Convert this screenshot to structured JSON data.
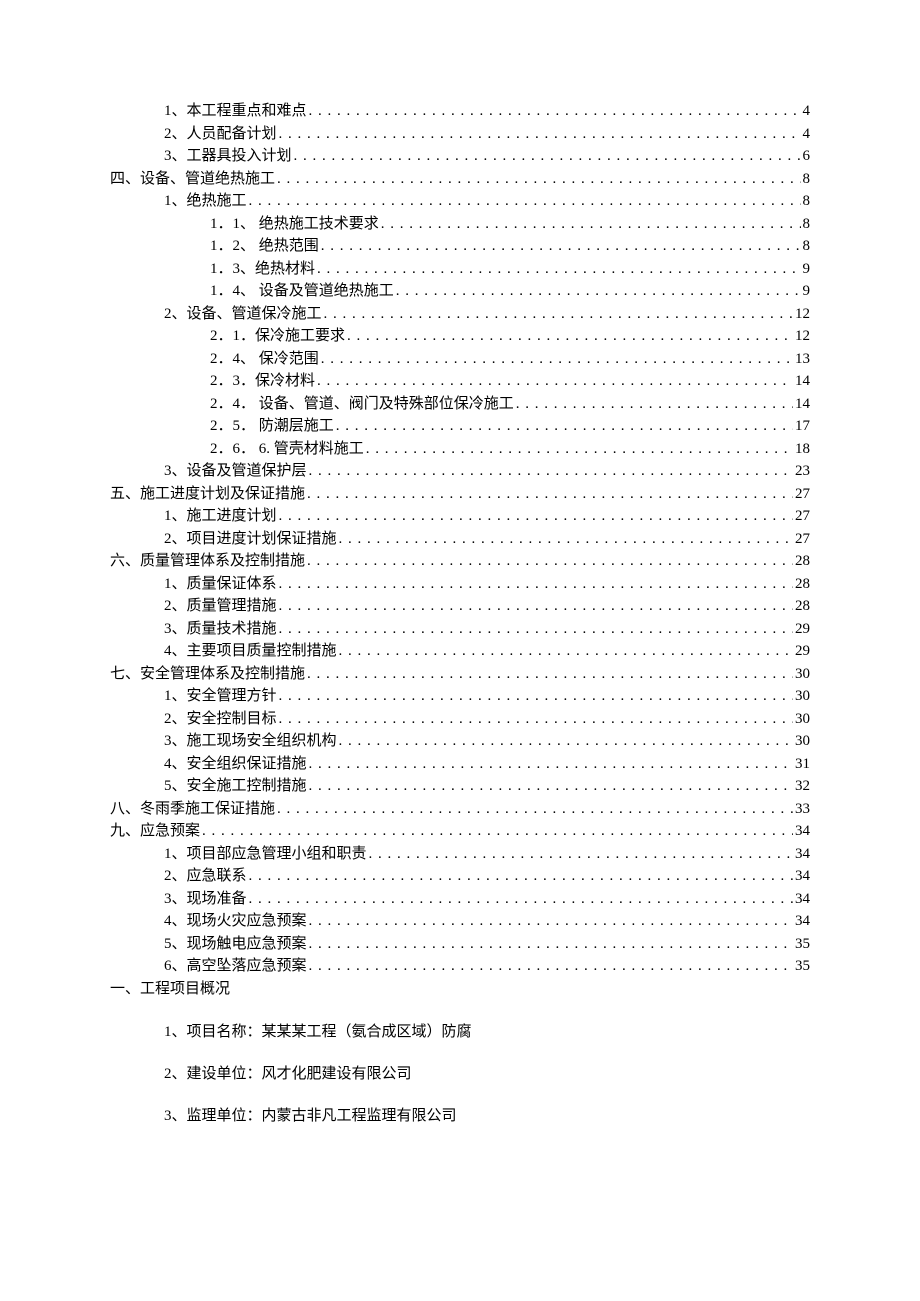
{
  "toc": [
    {
      "indent": 1,
      "label": "1、本工程重点和难点",
      "page": "4"
    },
    {
      "indent": 1,
      "label": "2、人员配备计划",
      "page": "4"
    },
    {
      "indent": 1,
      "label": "3、工器具投入计划",
      "page": "6"
    },
    {
      "indent": 0,
      "label": "四、设备、管道绝热施工",
      "page": "8"
    },
    {
      "indent": 1,
      "label": "1、绝热施工",
      "page": "8"
    },
    {
      "indent": 2,
      "label": "1．1、 绝热施工技术要求",
      "page": "8"
    },
    {
      "indent": 2,
      "label": "1．2、 绝热范围",
      "page": "8"
    },
    {
      "indent": 2,
      "label": "1．3、绝热材料",
      "page": "9"
    },
    {
      "indent": 2,
      "label": "1．4、 设备及管道绝热施工",
      "page": "9"
    },
    {
      "indent": 1,
      "label": "2、设备、管道保冷施工",
      "page": "12"
    },
    {
      "indent": 2,
      "label": "2．1．保冷施工要求",
      "page": "12"
    },
    {
      "indent": 2,
      "label": "2．4、 保冷范围",
      "page": "13"
    },
    {
      "indent": 2,
      "label": "2．3．保冷材料",
      "page": "14"
    },
    {
      "indent": 2,
      "label": "2．4． 设备、管道、阀门及特殊部位保冷施工",
      "page": "14"
    },
    {
      "indent": 2,
      "label": "2．5． 防潮层施工",
      "page": "17"
    },
    {
      "indent": 2,
      "label": "2．6． 6. 管壳材料施工",
      "page": "18"
    },
    {
      "indent": 1,
      "label": "3、设备及管道保护层",
      "page": "23"
    },
    {
      "indent": 0,
      "label": "五、施工进度计划及保证措施",
      "page": "27"
    },
    {
      "indent": 1,
      "label": "1、施工进度计划",
      "page": "27"
    },
    {
      "indent": 1,
      "label": "2、项目进度计划保证措施",
      "page": "27"
    },
    {
      "indent": 0,
      "label": "六、质量管理体系及控制措施",
      "page": "28"
    },
    {
      "indent": 1,
      "label": "1、质量保证体系",
      "page": "28"
    },
    {
      "indent": 1,
      "label": "2、质量管理措施",
      "page": "28"
    },
    {
      "indent": 1,
      "label": "3、质量技术措施",
      "page": "29"
    },
    {
      "indent": 1,
      "label": "4、主要项目质量控制措施",
      "page": "29"
    },
    {
      "indent": 0,
      "label": "七、安全管理体系及控制措施",
      "page": "30"
    },
    {
      "indent": 1,
      "label": "1、安全管理方针",
      "page": "30"
    },
    {
      "indent": 1,
      "label": "2、安全控制目标",
      "page": "30"
    },
    {
      "indent": 1,
      "label": "3、施工现场安全组织机构",
      "page": "30"
    },
    {
      "indent": 1,
      "label": "4、安全组织保证措施",
      "page": "31"
    },
    {
      "indent": 1,
      "label": "5、安全施工控制措施",
      "page": "32"
    },
    {
      "indent": 0,
      "label": "八、冬雨季施工保证措施",
      "page": "33"
    },
    {
      "indent": 0,
      "label": "九、应急预案",
      "page": "34"
    },
    {
      "indent": 1,
      "label": "1、项目部应急管理小组和职责",
      "page": "34"
    },
    {
      "indent": 1,
      "label": "2、应急联系",
      "page": "34"
    },
    {
      "indent": 1,
      "label": "3、现场准备",
      "page": "34"
    },
    {
      "indent": 1,
      "label": "4、现场火灾应急预案",
      "page": "34"
    },
    {
      "indent": 1,
      "label": "5、现场触电应急预案",
      "page": "35"
    },
    {
      "indent": 1,
      "label": "6、高空坠落应急预案",
      "page": "35"
    }
  ],
  "section_heading": "一、工程项目概况",
  "body_lines": [
    "1、项目名称：某某某工程（氨合成区域）防腐",
    "2、建设单位：风才化肥建设有限公司",
    "3、监理单位：内蒙古非凡工程监理有限公司"
  ]
}
